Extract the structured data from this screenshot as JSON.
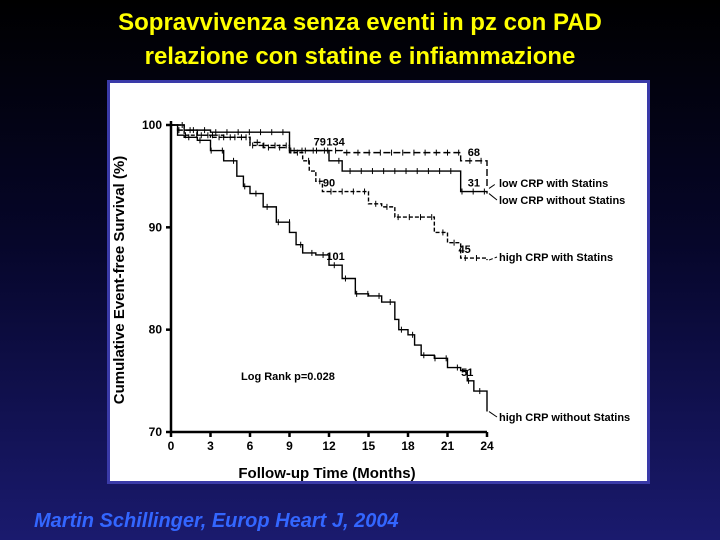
{
  "slide": {
    "title_line1": "Sopravvivenza senza eventi in pz con PAD",
    "title_line2": "relazione con statine e infiammazione",
    "citation": "Martin Schillinger, Europ Heart J, 2004"
  },
  "chart_data": {
    "type": "line",
    "title": "",
    "xlabel": "Follow-up Time (Months)",
    "ylabel": "Cumulative Event-free Survival (%)",
    "xlim": [
      0,
      24
    ],
    "ylim": [
      70,
      100
    ],
    "xticks": [
      0,
      3,
      6,
      9,
      12,
      15,
      18,
      21,
      24
    ],
    "yticks": [
      70,
      80,
      90,
      100
    ],
    "grid": false,
    "annotation": "Log Rank p=0.028",
    "series": [
      {
        "name": "low CRP with Statins",
        "dash": "long-dash",
        "points": [
          [
            0,
            100
          ],
          [
            0.5,
            99.5
          ],
          [
            2,
            99
          ],
          [
            4,
            98.8
          ],
          [
            6,
            98.3
          ],
          [
            7,
            97.8
          ],
          [
            9,
            97.5
          ],
          [
            12,
            97.5
          ],
          [
            13,
            97.3
          ],
          [
            16,
            97.3
          ],
          [
            22,
            96.5
          ],
          [
            24,
            95.5
          ],
          [
            24,
            93.8
          ]
        ],
        "label_numbers": [
          {
            "x": 12.5,
            "text": "134"
          },
          {
            "x": 23,
            "text": "68"
          }
        ]
      },
      {
        "name": "low CRP without Statins",
        "dash": "solid",
        "points": [
          [
            0,
            100
          ],
          [
            1,
            99.5
          ],
          [
            3,
            99.3
          ],
          [
            9,
            99.3
          ],
          [
            9,
            97.5
          ],
          [
            11,
            97.5
          ],
          [
            12,
            96.5
          ],
          [
            13,
            95.5
          ],
          [
            15,
            95.5
          ],
          [
            22,
            95.5
          ],
          [
            22,
            93.5
          ],
          [
            24,
            93.3
          ]
        ],
        "label_numbers": [
          {
            "x": 11.3,
            "text": "79"
          },
          {
            "x": 23,
            "text": "31"
          }
        ]
      },
      {
        "name": "high CRP with Statins",
        "dash": "short-dash",
        "points": [
          [
            0,
            100
          ],
          [
            1,
            99
          ],
          [
            3,
            98.8
          ],
          [
            6,
            98
          ],
          [
            9,
            97.3
          ],
          [
            10,
            96.5
          ],
          [
            10.5,
            95.5
          ],
          [
            11,
            94.5
          ],
          [
            11.5,
            93.5
          ],
          [
            15,
            93.3
          ],
          [
            15,
            92.3
          ],
          [
            16,
            92
          ],
          [
            17,
            91
          ],
          [
            20,
            91
          ],
          [
            20,
            89.5
          ],
          [
            21,
            88.5
          ],
          [
            22,
            88.3
          ],
          [
            22,
            87
          ],
          [
            24,
            86.8
          ]
        ],
        "label_numbers": [
          {
            "x": 12,
            "text": "90"
          },
          {
            "x": 22.3,
            "text": "45"
          }
        ]
      },
      {
        "name": "high CRP without Statins",
        "dash": "solid",
        "points": [
          [
            0,
            100
          ],
          [
            0.5,
            99
          ],
          [
            1,
            98.8
          ],
          [
            2,
            98.5
          ],
          [
            3,
            97.5
          ],
          [
            4,
            96.5
          ],
          [
            5,
            95
          ],
          [
            5.5,
            94
          ],
          [
            6,
            93.3
          ],
          [
            7,
            92
          ],
          [
            8,
            90.5
          ],
          [
            9,
            89.5
          ],
          [
            9.5,
            88.3
          ],
          [
            10,
            87.5
          ],
          [
            11,
            87.3
          ],
          [
            12,
            86.3
          ],
          [
            13,
            85
          ],
          [
            14,
            83.5
          ],
          [
            15,
            83.3
          ],
          [
            16,
            82.7
          ],
          [
            17,
            81
          ],
          [
            17.3,
            80
          ],
          [
            18,
            79.5
          ],
          [
            18.5,
            78.5
          ],
          [
            19,
            77.5
          ],
          [
            20,
            77.2
          ],
          [
            21,
            76.3
          ],
          [
            22,
            76
          ],
          [
            22.5,
            75
          ],
          [
            23,
            74
          ],
          [
            24,
            74
          ],
          [
            24,
            72
          ]
        ],
        "label_numbers": [
          {
            "x": 12.5,
            "text": "101"
          },
          {
            "x": 22.5,
            "text": "51"
          }
        ]
      }
    ]
  }
}
